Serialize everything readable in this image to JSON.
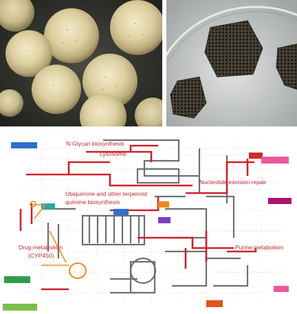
{
  "figure": {
    "photos": [
      {
        "name": "eggs-closeup",
        "subject": "cluster of pale yellowish eggs"
      },
      {
        "name": "egg-clusters-dish",
        "subject": "dark egg masses in a clear petri dish"
      }
    ],
    "pathway_map": {
      "highlight_color": "#d0202a",
      "labels": {
        "n_glycan": "N-Glycan biosynthesis",
        "lysosome": "Lysosome",
        "ubiquinone_1": "Ubiquinone and other terpenoid",
        "ubiquinone_2": "quinone biosynthesis",
        "nucleotide_excision": "Nucleotide excision repair",
        "drug_metabolism_1": "Drug metabolism",
        "drug_metabolism_2": "(CYP450)",
        "purine": "Purine metabolism"
      }
    }
  }
}
